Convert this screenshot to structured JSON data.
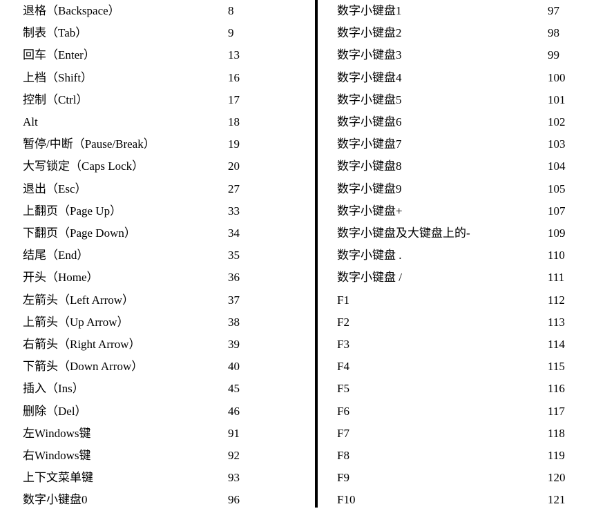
{
  "left_rows": [
    {
      "name": "退格（Backspace）",
      "code": "8"
    },
    {
      "name": "制表（Tab）",
      "code": "9"
    },
    {
      "name": "回车（Enter）",
      "code": "13"
    },
    {
      "name": "上档（Shift）",
      "code": "16"
    },
    {
      "name": "控制（Ctrl）",
      "code": "17"
    },
    {
      "name": "Alt",
      "code": "18"
    },
    {
      "name": "暂停/中断（Pause/Break）",
      "code": "19"
    },
    {
      "name": "大写锁定（Caps Lock）",
      "code": "20"
    },
    {
      "name": "退出（Esc）",
      "code": "27"
    },
    {
      "name": "上翻页（Page Up）",
      "code": "33"
    },
    {
      "name": "下翻页（Page Down）",
      "code": "34"
    },
    {
      "name": "结尾（End）",
      "code": "35"
    },
    {
      "name": "开头（Home）",
      "code": "36"
    },
    {
      "name": "左箭头（Left Arrow）",
      "code": "37"
    },
    {
      "name": "上箭头（Up Arrow）",
      "code": "38"
    },
    {
      "name": "右箭头（Right Arrow）",
      "code": "39"
    },
    {
      "name": "下箭头（Down Arrow）",
      "code": "40"
    },
    {
      "name": "插入（Ins）",
      "code": "45"
    },
    {
      "name": "删除（Del）",
      "code": "46"
    },
    {
      "name": "左Windows键",
      "code": "91"
    },
    {
      "name": "右Windows键",
      "code": "92"
    },
    {
      "name": "上下文菜单键",
      "code": "93"
    },
    {
      "name": "数字小键盘0",
      "code": "96"
    }
  ],
  "right_rows": [
    {
      "name": "数字小键盘1",
      "code": "97"
    },
    {
      "name": "数字小键盘2",
      "code": "98"
    },
    {
      "name": "数字小键盘3",
      "code": "99"
    },
    {
      "name": "数字小键盘4",
      "code": "100"
    },
    {
      "name": "数字小键盘5",
      "code": "101"
    },
    {
      "name": "数字小键盘6",
      "code": "102"
    },
    {
      "name": "数字小键盘7",
      "code": "103"
    },
    {
      "name": "数字小键盘8",
      "code": "104"
    },
    {
      "name": "数字小键盘9",
      "code": "105"
    },
    {
      "name": "数字小键盘+",
      "code": "107"
    },
    {
      "name": "数字小键盘及大键盘上的-",
      "code": "109"
    },
    {
      "name": "数字小键盘 .",
      "code": "110"
    },
    {
      "name": "数字小键盘 /",
      "code": "111"
    },
    {
      "name": "F1",
      "code": "112"
    },
    {
      "name": "F2",
      "code": "113"
    },
    {
      "name": "F3",
      "code": "114"
    },
    {
      "name": "F4",
      "code": "115"
    },
    {
      "name": "F5",
      "code": "116"
    },
    {
      "name": "F6",
      "code": "117"
    },
    {
      "name": "F7",
      "code": "118"
    },
    {
      "name": "F8",
      "code": "119"
    },
    {
      "name": "F9",
      "code": "120"
    },
    {
      "name": "F10",
      "code": "121"
    }
  ]
}
